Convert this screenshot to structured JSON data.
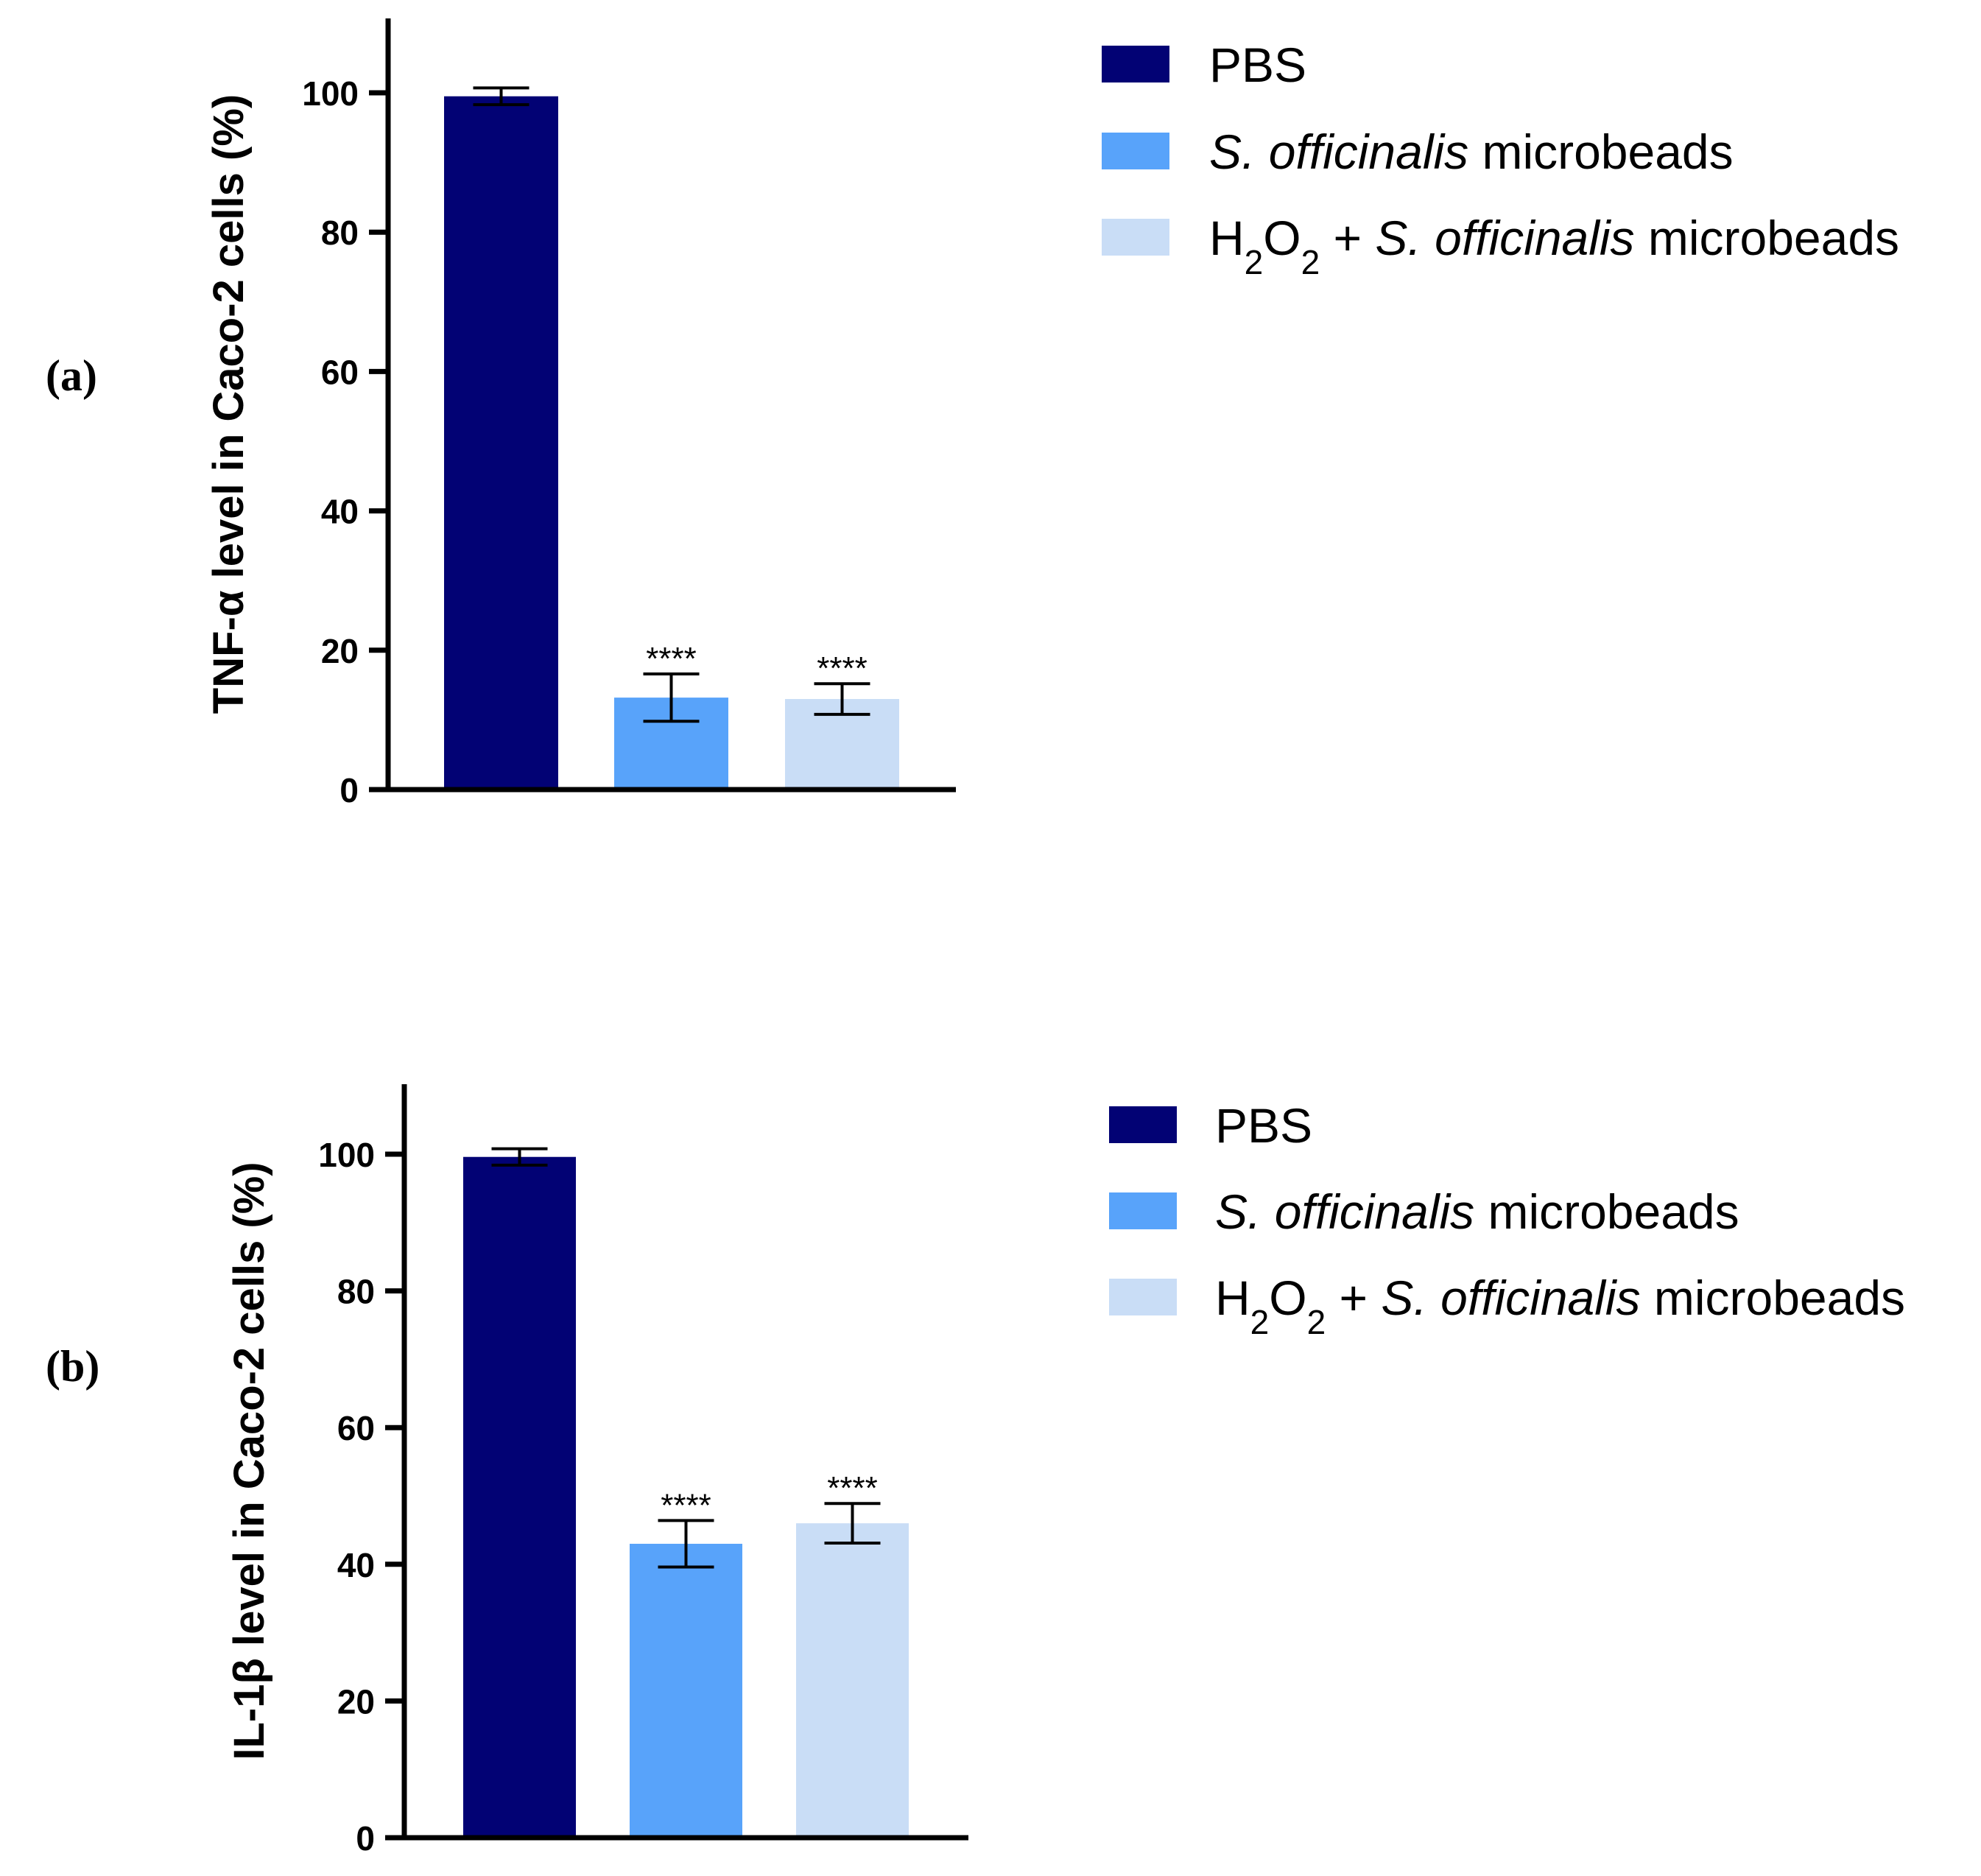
{
  "colors": {
    "PBS": "#020274",
    "S. officinalis microbeads": "#58a3fa",
    "H2O2 + S. officinalis microbeads": "#c9ddf6"
  },
  "chart_data": [
    {
      "type": "bar",
      "panel": "(a)",
      "ylabel": "TNF-α level in Caco-2 cells (%)",
      "ylim": [
        0,
        110
      ],
      "yticks": [
        0,
        20,
        40,
        60,
        80,
        100
      ],
      "categories": [
        "PBS",
        "S. officinalis microbeads",
        "H2O2 + S. officinalis microbeads"
      ],
      "values": [
        99.5,
        13.2,
        13.0
      ],
      "errors": [
        1.2,
        3.4,
        2.2
      ],
      "significance": [
        "",
        "****",
        "****"
      ],
      "legend": {
        "position": "top-right",
        "entries": [
          {
            "series": "PBS",
            "parts": [
              {
                "text": "PBS",
                "style": "normal"
              }
            ]
          },
          {
            "series": "S. officinalis microbeads",
            "parts": [
              {
                "text": "S. officinalis",
                "style": "italic"
              },
              {
                "text": " microbeads",
                "style": "normal"
              }
            ]
          },
          {
            "series": "H2O2 + S. officinalis microbeads",
            "parts": [
              {
                "text": "H",
                "style": "normal"
              },
              {
                "text": "2",
                "style": "sub"
              },
              {
                "text": "O",
                "style": "normal"
              },
              {
                "text": "2",
                "style": "sub"
              },
              {
                "text": " + ",
                "style": "normal"
              },
              {
                "text": "S. officinalis",
                "style": "italic"
              },
              {
                "text": " microbeads",
                "style": "normal"
              }
            ]
          }
        ]
      }
    },
    {
      "type": "bar",
      "panel": "(b)",
      "ylabel": "IL-1β level in Caco-2 cells (%)",
      "ylim": [
        0,
        110
      ],
      "yticks": [
        0,
        20,
        40,
        60,
        80,
        100
      ],
      "categories": [
        "PBS",
        "S. officinalis microbeads",
        "H2O2 + S. officinalis microbeads"
      ],
      "values": [
        99.6,
        43.0,
        46.0
      ],
      "errors": [
        1.2,
        3.4,
        2.9
      ],
      "significance": [
        "",
        "****",
        "****"
      ],
      "legend": {
        "position": "top-right",
        "entries": [
          {
            "series": "PBS",
            "parts": [
              {
                "text": "PBS",
                "style": "normal"
              }
            ]
          },
          {
            "series": "S. officinalis microbeads",
            "parts": [
              {
                "text": "S. officinalis",
                "style": "italic"
              },
              {
                "text": " microbeads",
                "style": "normal"
              }
            ]
          },
          {
            "series": "H2O2 + S. officinalis microbeads",
            "parts": [
              {
                "text": "H",
                "style": "normal"
              },
              {
                "text": "2",
                "style": "sub"
              },
              {
                "text": "O",
                "style": "normal"
              },
              {
                "text": "2",
                "style": "sub"
              },
              {
                "text": " + ",
                "style": "normal"
              },
              {
                "text": "S. officinalis",
                "style": "italic"
              },
              {
                "text": " microbeads",
                "style": "normal"
              }
            ]
          }
        ]
      }
    }
  ]
}
